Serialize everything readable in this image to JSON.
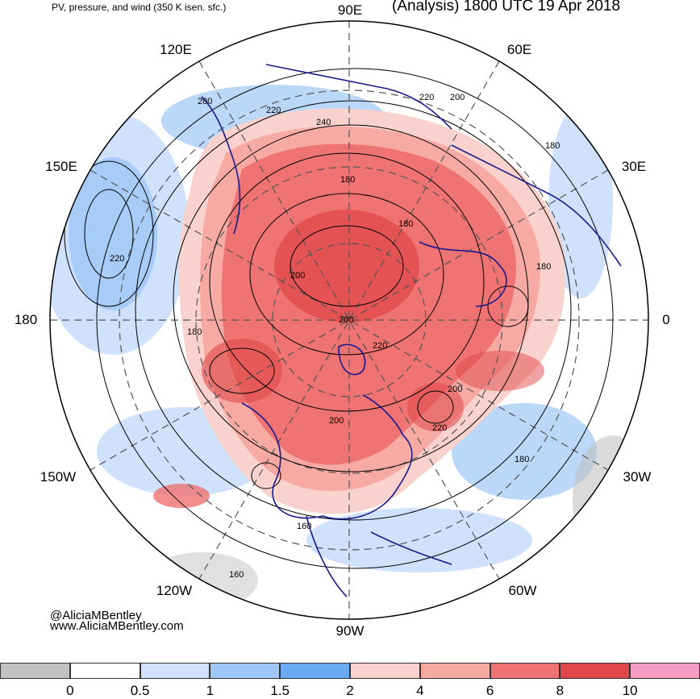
{
  "header": {
    "left_title": "PV, pressure, and wind (350 K isen. sfc.)",
    "right_title": "(Analysis) 1800 UTC 19 Apr 2018"
  },
  "longitude_labels": {
    "lon_90e": "90E",
    "lon_120e": "120E",
    "lon_60e": "60E",
    "lon_150e": "150E",
    "lon_30e": "30E",
    "lon_180": "180",
    "lon_0": "0",
    "lon_150w": "150W",
    "lon_30w": "30W",
    "lon_120w": "120W",
    "lon_60w": "60W",
    "lon_90w": "90W"
  },
  "contour_labels": [
    {
      "text": "200"
    },
    {
      "text": "220"
    },
    {
      "text": "240"
    },
    {
      "text": "220"
    },
    {
      "text": "200"
    },
    {
      "text": "180"
    },
    {
      "text": "180"
    },
    {
      "text": "180"
    },
    {
      "text": "220"
    },
    {
      "text": "200"
    },
    {
      "text": "200"
    },
    {
      "text": "180"
    },
    {
      "text": "220"
    },
    {
      "text": "200"
    },
    {
      "text": "200"
    },
    {
      "text": "220"
    },
    {
      "text": "180"
    },
    {
      "text": "160"
    },
    {
      "text": "160"
    },
    {
      "text": "180"
    }
  ],
  "credits": {
    "handle": "@AliciaMBentley",
    "website": "www.AliciaMBentley.com"
  },
  "colorbar": {
    "colors": [
      "#c2c2c2",
      "#ffffff",
      "#cfe1fb",
      "#9ec7f7",
      "#6aaaf2",
      "#fad2cd",
      "#f7aaa4",
      "#ef7372",
      "#e0474a",
      "#f59ac3"
    ],
    "tick_labels": [
      "0",
      "0.5",
      "1",
      "1.5",
      "2",
      "4",
      "6",
      "8",
      "10"
    ]
  },
  "map_colors": {
    "coast": "#1a1a8c",
    "contour": "#000000",
    "grid": "#555555"
  }
}
